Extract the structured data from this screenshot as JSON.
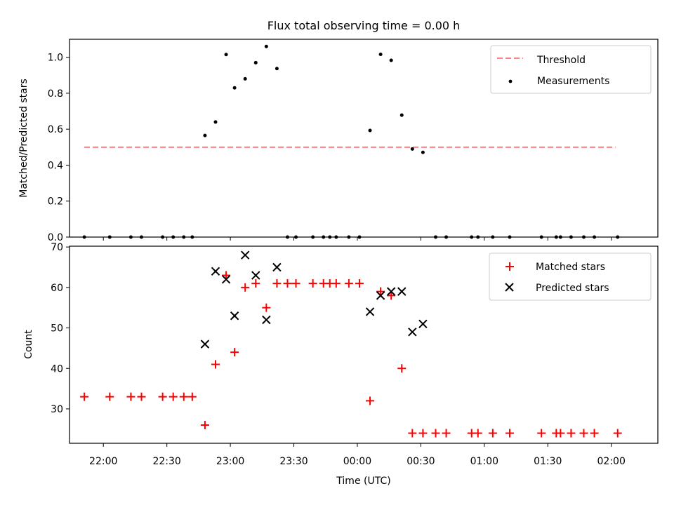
{
  "chart_data": [
    {
      "type": "scatter",
      "title": "Flux total observing time = 0.00 h",
      "ylabel": "Matched/Predicted stars",
      "xlim": [
        "21:44",
        "02:22"
      ],
      "ylim": [
        0,
        1.1
      ],
      "yticks": [
        "0.0",
        "0.2",
        "0.4",
        "0.6",
        "0.8",
        "1.0"
      ],
      "legend_position": "top-right",
      "threshold": {
        "name": "Threshold",
        "y": 0.5,
        "x_start": "21:51",
        "x_end": "02:02",
        "color": "#ff7f7f",
        "style": "dashed"
      },
      "series": [
        {
          "name": "Measurements",
          "color": "#000000",
          "marker": "dot",
          "points": [
            [
              "21:51",
              0.0
            ],
            [
              "22:03",
              0.0
            ],
            [
              "22:13",
              0.0
            ],
            [
              "22:18",
              0.0
            ],
            [
              "22:28",
              0.0
            ],
            [
              "22:33",
              0.0
            ],
            [
              "22:38",
              0.0
            ],
            [
              "22:42",
              0.0
            ],
            [
              "22:48",
              0.565
            ],
            [
              "22:53",
              0.64
            ],
            [
              "22:58",
              1.015
            ],
            [
              "23:02",
              0.83
            ],
            [
              "23:07",
              0.88
            ],
            [
              "23:12",
              0.97
            ],
            [
              "23:17",
              1.06
            ],
            [
              "23:22",
              0.937
            ],
            [
              "23:27",
              0.0
            ],
            [
              "23:31",
              0.0
            ],
            [
              "23:39",
              0.0
            ],
            [
              "23:44",
              0.0
            ],
            [
              "23:47",
              0.0
            ],
            [
              "23:50",
              0.0
            ],
            [
              "23:56",
              0.0
            ],
            [
              "00:01",
              0.0
            ],
            [
              "00:06",
              0.593
            ],
            [
              "00:11",
              1.016
            ],
            [
              "00:16",
              0.983
            ],
            [
              "00:21",
              0.678
            ],
            [
              "00:26",
              0.49
            ],
            [
              "00:31",
              0.471
            ],
            [
              "00:37",
              0.0
            ],
            [
              "00:42",
              0.0
            ],
            [
              "00:54",
              0.0
            ],
            [
              "00:57",
              0.0
            ],
            [
              "01:04",
              0.0
            ],
            [
              "01:12",
              0.0
            ],
            [
              "01:27",
              0.0
            ],
            [
              "01:34",
              0.0
            ],
            [
              "01:36",
              0.0
            ],
            [
              "01:41",
              0.0
            ],
            [
              "01:47",
              0.0
            ],
            [
              "01:52",
              0.0
            ],
            [
              "02:03",
              0.0
            ]
          ]
        }
      ]
    },
    {
      "type": "scatter",
      "xlabel": "Time (UTC)",
      "ylabel": "Count",
      "xlim": [
        "21:44",
        "02:22"
      ],
      "ylim": [
        21.5,
        70.2
      ],
      "yticks": [
        "30",
        "40",
        "50",
        "60",
        "70"
      ],
      "xticks": [
        "22:00",
        "22:30",
        "23:00",
        "23:30",
        "00:00",
        "00:30",
        "01:00",
        "01:30",
        "02:00"
      ],
      "legend_position": "top-right",
      "series": [
        {
          "name": "Matched stars",
          "color": "#ff0000",
          "marker": "plus",
          "points": [
            [
              "21:51",
              33
            ],
            [
              "22:03",
              33
            ],
            [
              "22:13",
              33
            ],
            [
              "22:18",
              33
            ],
            [
              "22:28",
              33
            ],
            [
              "22:33",
              33
            ],
            [
              "22:38",
              33
            ],
            [
              "22:42",
              33
            ],
            [
              "22:48",
              26
            ],
            [
              "22:53",
              41
            ],
            [
              "22:58",
              63
            ],
            [
              "23:02",
              44
            ],
            [
              "23:07",
              60
            ],
            [
              "23:12",
              61
            ],
            [
              "23:17",
              55
            ],
            [
              "23:22",
              61
            ],
            [
              "23:27",
              61
            ],
            [
              "23:31",
              61
            ],
            [
              "23:39",
              61
            ],
            [
              "23:44",
              61
            ],
            [
              "23:47",
              61
            ],
            [
              "23:50",
              61
            ],
            [
              "23:56",
              61
            ],
            [
              "00:01",
              61
            ],
            [
              "00:06",
              32
            ],
            [
              "00:11",
              59
            ],
            [
              "00:16",
              58
            ],
            [
              "00:21",
              40
            ],
            [
              "00:26",
              24
            ],
            [
              "00:31",
              24
            ],
            [
              "00:37",
              24
            ],
            [
              "00:42",
              24
            ],
            [
              "00:54",
              24
            ],
            [
              "00:57",
              24
            ],
            [
              "01:04",
              24
            ],
            [
              "01:12",
              24
            ],
            [
              "01:27",
              24
            ],
            [
              "01:34",
              24
            ],
            [
              "01:36",
              24
            ],
            [
              "01:41",
              24
            ],
            [
              "01:47",
              24
            ],
            [
              "01:52",
              24
            ],
            [
              "02:03",
              24
            ]
          ]
        },
        {
          "name": "Predicted stars",
          "color": "#000000",
          "marker": "x",
          "points": [
            [
              "22:48",
              46
            ],
            [
              "22:53",
              64
            ],
            [
              "22:58",
              62
            ],
            [
              "23:02",
              53
            ],
            [
              "23:07",
              68
            ],
            [
              "23:12",
              63
            ],
            [
              "23:17",
              52
            ],
            [
              "23:22",
              65
            ],
            [
              "00:06",
              54
            ],
            [
              "00:11",
              58
            ],
            [
              "00:16",
              59
            ],
            [
              "00:21",
              59
            ],
            [
              "00:26",
              49
            ],
            [
              "00:31",
              51
            ]
          ]
        }
      ]
    }
  ]
}
